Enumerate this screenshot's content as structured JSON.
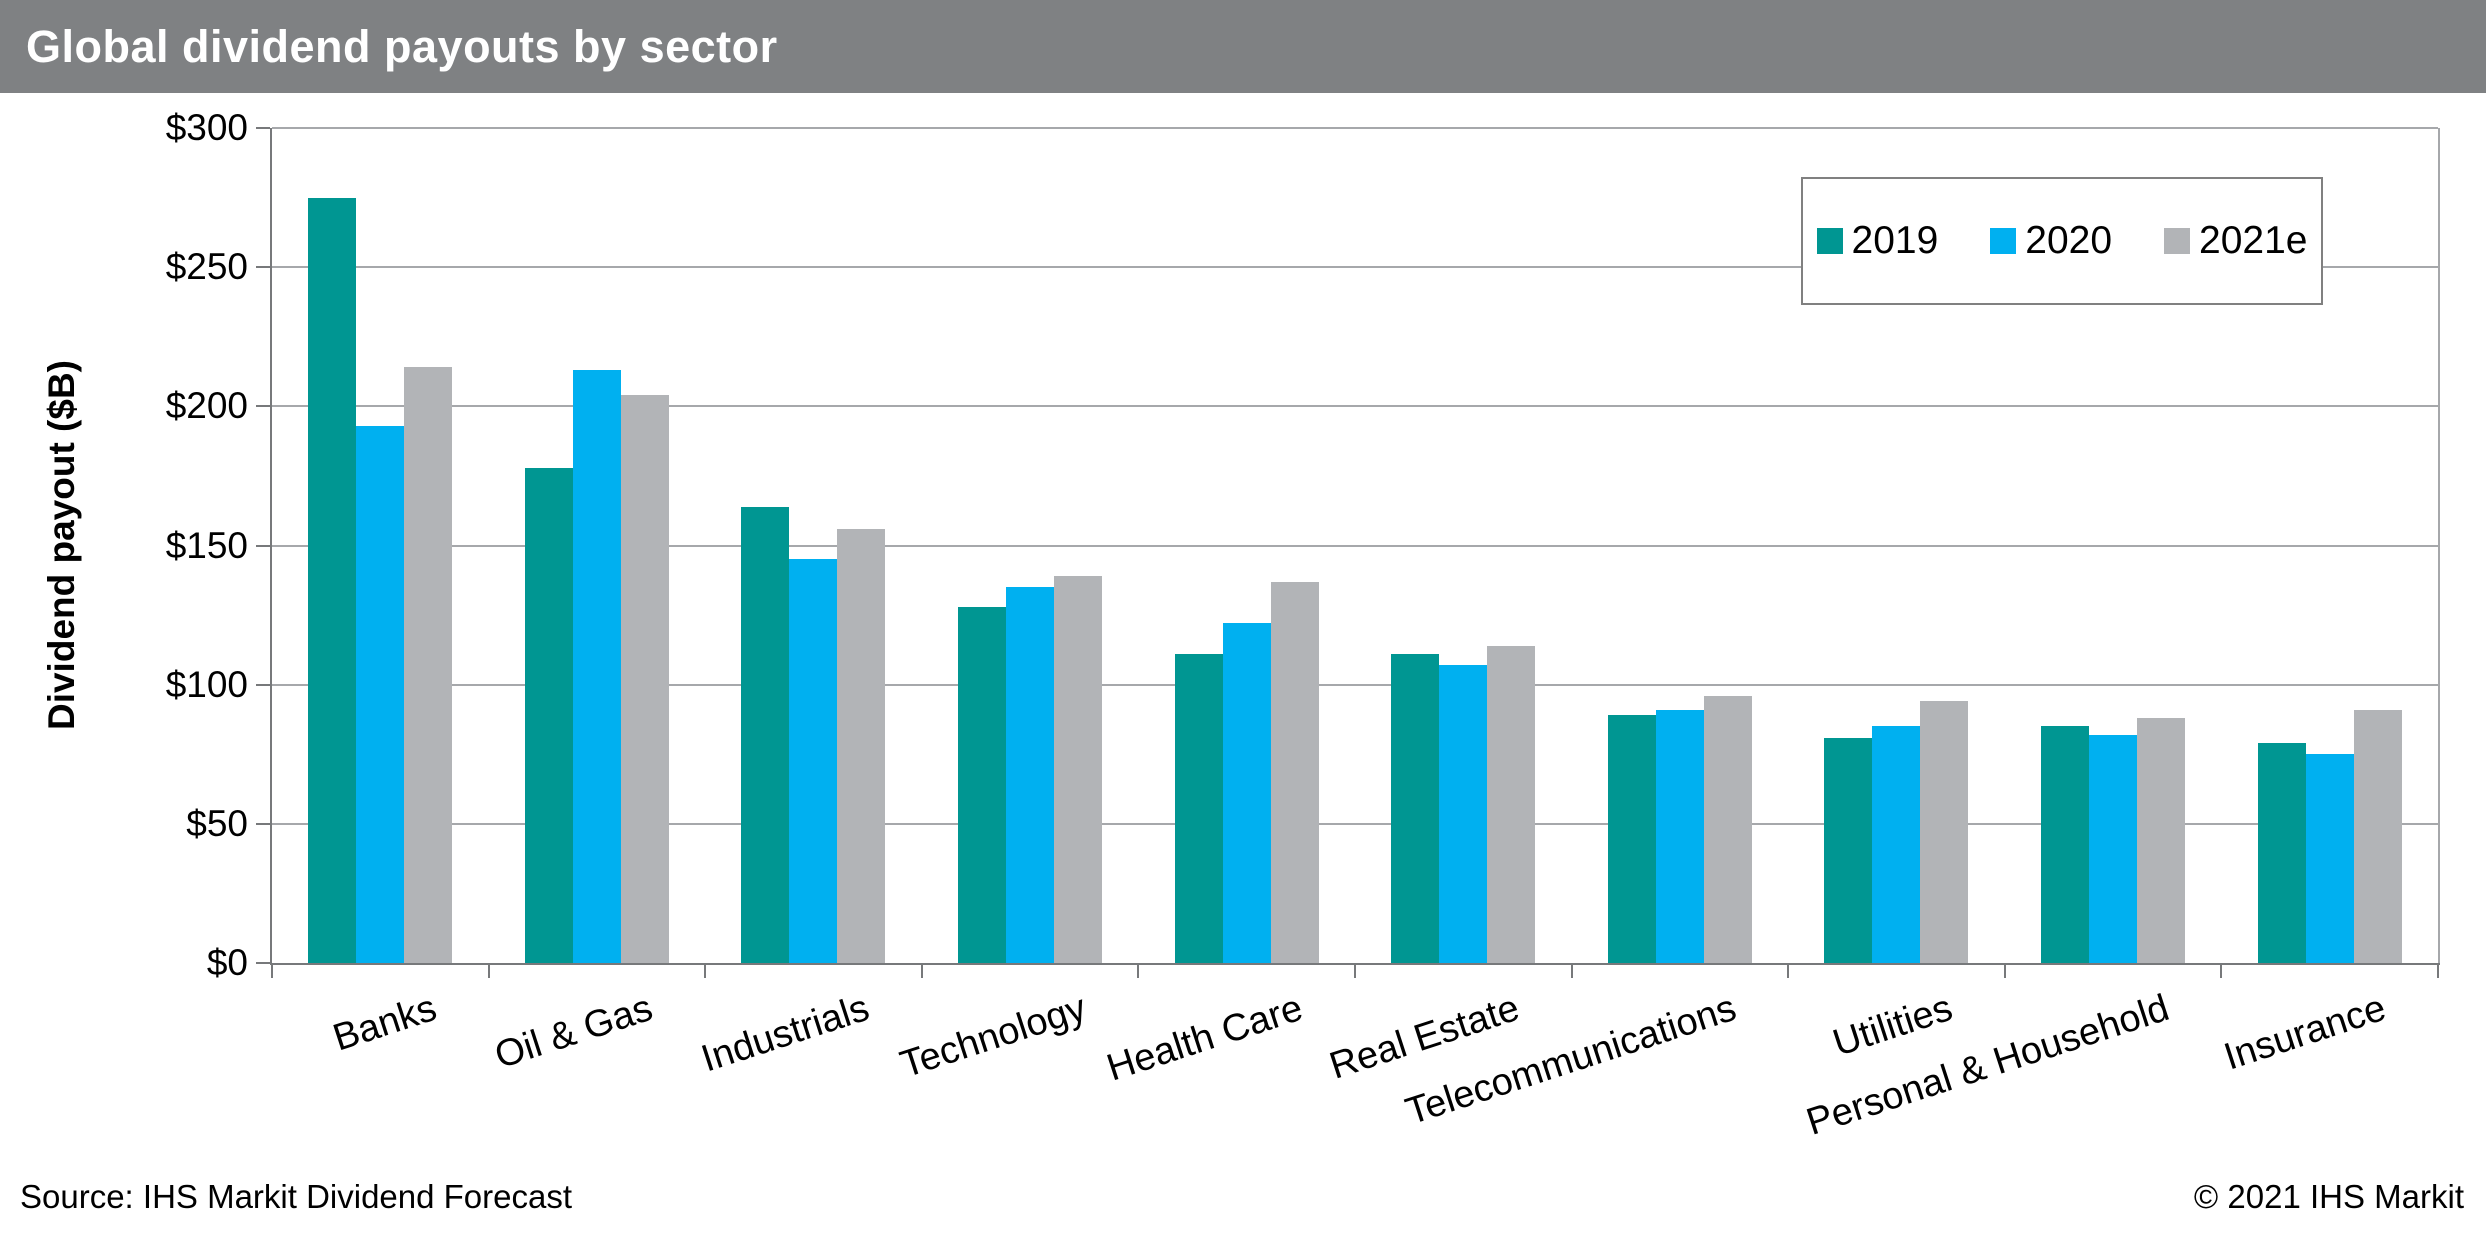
{
  "title_bar": {
    "title": "Global dividend payouts by sector",
    "bg_color": "#7F8183",
    "text_color": "#FFFFFF"
  },
  "chart_data": {
    "type": "bar",
    "title": "Global dividend payouts by sector",
    "xlabel": "",
    "ylabel": "Dividend payout ($B)",
    "ylim": [
      0,
      300
    ],
    "y_tick_step": 50,
    "y_tick_labels": [
      "$0",
      "$50",
      "$100",
      "$150",
      "$200",
      "$250",
      "$300"
    ],
    "grid": "horizontal",
    "legend_position": "top-right",
    "categories": [
      "Banks",
      "Oil & Gas",
      "Industrials",
      "Technology",
      "Health Care",
      "Real Estate",
      "Telecommunications",
      "Utilities",
      "Personal & Household",
      "Insurance"
    ],
    "series": [
      {
        "name": "2019",
        "color": "#009692",
        "values": [
          275,
          178,
          164,
          128,
          111,
          111,
          89,
          81,
          85,
          79
        ]
      },
      {
        "name": "2020",
        "color": "#00B0F0",
        "values": [
          193,
          213,
          145,
          135,
          122,
          107,
          91,
          85,
          82,
          75
        ]
      },
      {
        "name": "2021e",
        "color": "#B2B4B7",
        "values": [
          214,
          204,
          156,
          139,
          137,
          114,
          96,
          94,
          88,
          91
        ]
      }
    ],
    "colors": {
      "gridline": "#A6A8AB",
      "axis": "#77797B",
      "legend_border": "#808080"
    }
  },
  "footer": {
    "source": "Source: IHS Markit Dividend Forecast",
    "copyright": "© 2021 IHS Markit"
  }
}
